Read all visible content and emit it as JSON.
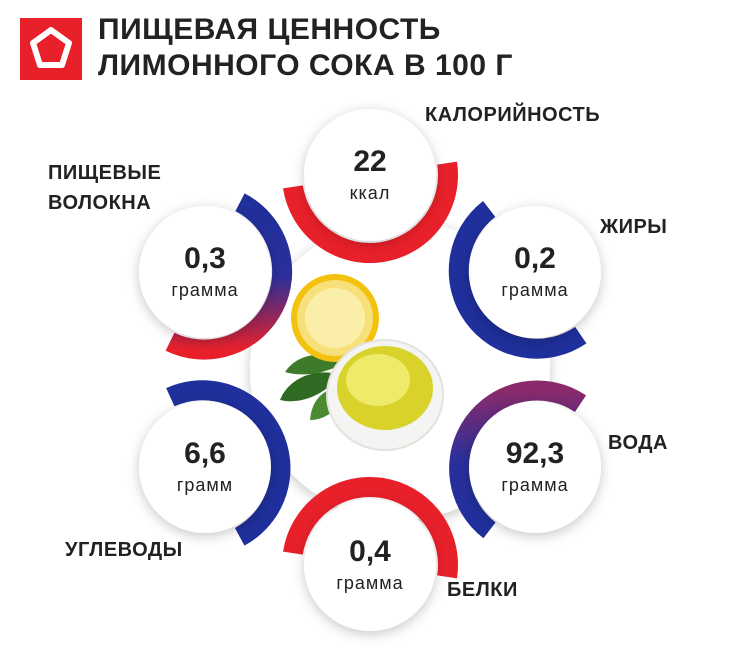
{
  "header": {
    "title_lines": [
      "ПИЩЕВАЯ ЦЕННОСТЬ",
      "ЛИМОННОГО СОКА В 100 Г"
    ]
  },
  "items": [
    {
      "label": "КАЛОРИЙНОСТЬ",
      "value": "22",
      "unit": "ккал"
    },
    {
      "label": "ЖИРЫ",
      "value": "0,2",
      "unit": "грамма"
    },
    {
      "label": "ВОДА",
      "value": "92,3",
      "unit": "грамма"
    },
    {
      "label": "БЕЛКИ",
      "value": "0,4",
      "unit": "грамма"
    },
    {
      "label": "УГЛЕВОДЫ",
      "value": "6,6",
      "unit": "грамм"
    },
    {
      "label": "ПИЩЕВЫЕ ВОЛОКНА",
      "value": "0,3",
      "unit": "грамма"
    }
  ]
}
